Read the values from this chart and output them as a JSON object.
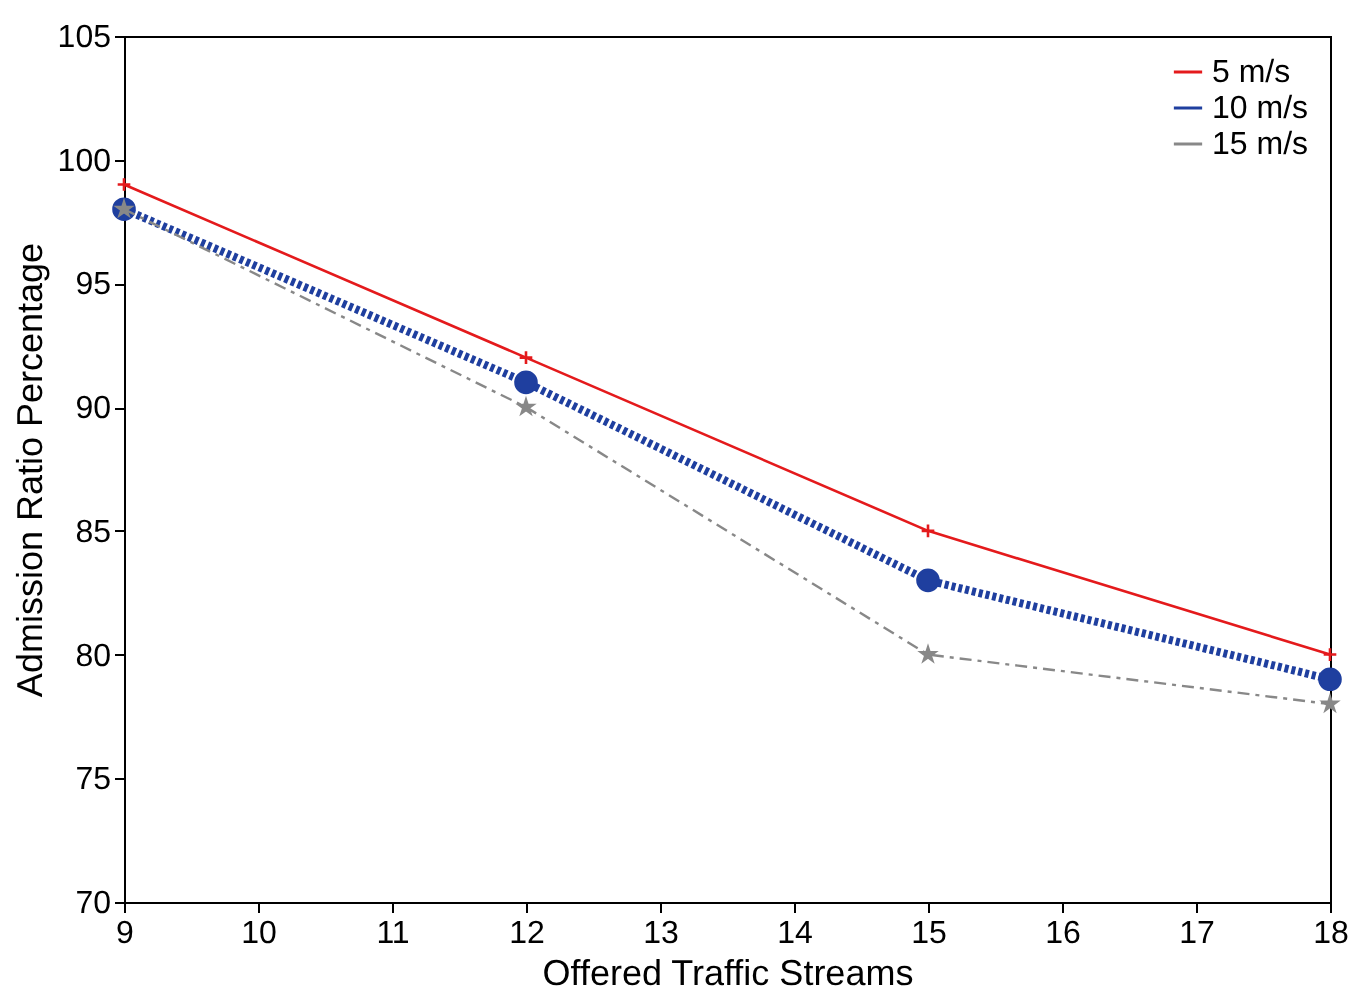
{
  "chart_data": {
    "type": "line",
    "xlabel": "Offered Traffic Streams",
    "ylabel": "Admission Ratio Percentage",
    "x": [
      9,
      12,
      15,
      18
    ],
    "series": [
      {
        "name": "5 m/s",
        "color": "#e41a1c",
        "values": [
          99,
          92,
          85,
          80
        ],
        "marker": "cross",
        "line_style": "solid"
      },
      {
        "name": "10 m/s",
        "color": "#1f3f9f",
        "values": [
          98,
          91,
          83,
          79
        ],
        "marker": "circle",
        "line_style": "dotted"
      },
      {
        "name": "15 m/s",
        "color": "#888888",
        "values": [
          98,
          90,
          80,
          78
        ],
        "marker": "star",
        "line_style": "dashed"
      }
    ],
    "xlim": [
      9,
      18
    ],
    "xticks": [
      9,
      10,
      11,
      12,
      13,
      14,
      15,
      16,
      17,
      18
    ],
    "ylim": [
      70,
      105
    ],
    "yticks": [
      70,
      75,
      80,
      85,
      90,
      95,
      100,
      105
    ],
    "grid": false,
    "legend": "top right"
  }
}
